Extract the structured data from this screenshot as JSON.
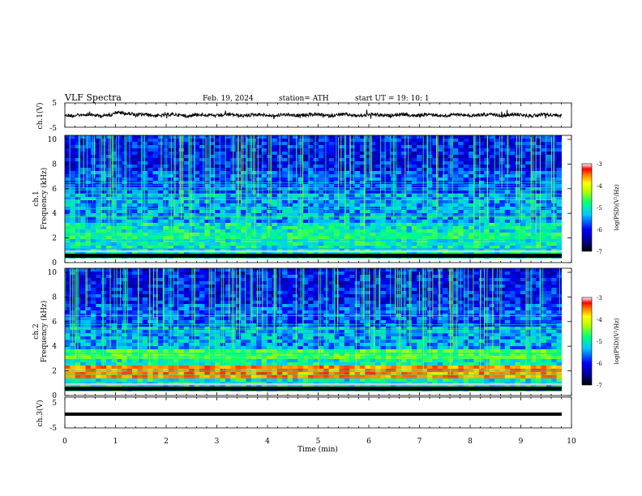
{
  "header": {
    "title": "VLF  Spectra",
    "date": "Feb. 19, 2024",
    "station": "station= ATH",
    "start_ut": "start  UT  =    19: 10: 1"
  },
  "chart_data": [
    {
      "type": "line",
      "name": "ch1-waveform",
      "ylabel": "ch.1(V)",
      "ylim": [
        -5,
        5
      ],
      "yticks": [
        "5",
        "-5"
      ],
      "xlim": [
        0,
        10
      ]
    },
    {
      "type": "heatmap",
      "name": "ch1-spectrogram",
      "ylabel_line1": "ch.1",
      "ylabel_line2": "Frequency  (kHz)",
      "ylim": [
        0,
        10
      ],
      "yticks": [
        "0",
        "2",
        "4",
        "6",
        "8",
        "10"
      ],
      "xlim": [
        0,
        10
      ],
      "colorbar": {
        "label": "log(PSD)(V²/Hz)",
        "range": [
          -7,
          -3
        ],
        "ticks": [
          "-3",
          "-4",
          "-5",
          "-6",
          "-7"
        ]
      }
    },
    {
      "type": "heatmap",
      "name": "ch2-spectrogram",
      "ylabel_line1": "ch.2",
      "ylabel_line2": "Frequency  (kHz)",
      "ylim": [
        0,
        10
      ],
      "yticks": [
        "0",
        "2",
        "4",
        "6",
        "8",
        "10"
      ],
      "xlim": [
        0,
        10
      ],
      "colorbar": {
        "label": "log(PSD)(V²/Hz)",
        "range": [
          -7,
          -3
        ],
        "ticks": [
          "-3",
          "-4",
          "-5",
          "-6",
          "-7"
        ]
      }
    },
    {
      "type": "line",
      "name": "ch3-waveform",
      "ylabel": "ch.3(V)",
      "ylim": [
        -5,
        5
      ],
      "yticks": [
        "5",
        "-5"
      ],
      "xlim": [
        0,
        10
      ]
    }
  ],
  "xaxis": {
    "label": "Time  (min)",
    "ticks": [
      "0",
      "1",
      "2",
      "3",
      "4",
      "5",
      "6",
      "7",
      "8",
      "9",
      "10"
    ]
  }
}
